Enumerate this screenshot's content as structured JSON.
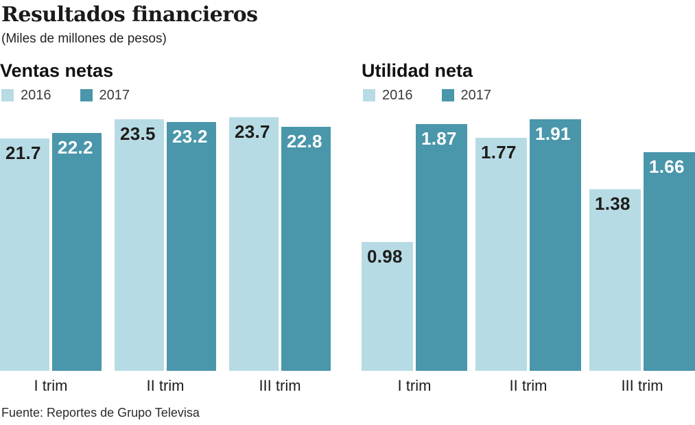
{
  "header": {
    "title": "Resultados financieros",
    "subtitle": "(Miles de millones de pesos)"
  },
  "footer": {
    "source": "Fuente: Reportes de Grupo Televisa"
  },
  "colors": {
    "background": "#ffffff",
    "text": "#1d1d1b",
    "bar_2016": "#b7dbe4",
    "bar_2017": "#4a96ab"
  },
  "chart_data": [
    {
      "type": "bar",
      "title": "Ventas netas",
      "categories": [
        "I trim",
        "II trim",
        "III trim"
      ],
      "series": [
        {
          "name": "2016",
          "color": "#b7dbe4",
          "label_color": "#1d1d1b",
          "values": [
            21.7,
            23.5,
            23.7
          ]
        },
        {
          "name": "2017",
          "color": "#4a96ab",
          "label_color": "#ffffff",
          "values": [
            22.2,
            23.2,
            22.8
          ]
        }
      ],
      "ylim": [
        0,
        24
      ],
      "grid": false,
      "legend_position": "top-left",
      "value_labels": "inside-top"
    },
    {
      "type": "bar",
      "title": "Utilidad neta",
      "categories": [
        "I trim",
        "II trim",
        "III trim"
      ],
      "series": [
        {
          "name": "2016",
          "color": "#b7dbe4",
          "label_color": "#1d1d1b",
          "values": [
            0.98,
            1.77,
            1.38
          ]
        },
        {
          "name": "2017",
          "color": "#4a96ab",
          "label_color": "#ffffff",
          "values": [
            1.87,
            1.91,
            1.66
          ]
        }
      ],
      "ylim": [
        0,
        1.95
      ],
      "grid": false,
      "legend_position": "top-left",
      "value_labels": "inside-top"
    }
  ]
}
